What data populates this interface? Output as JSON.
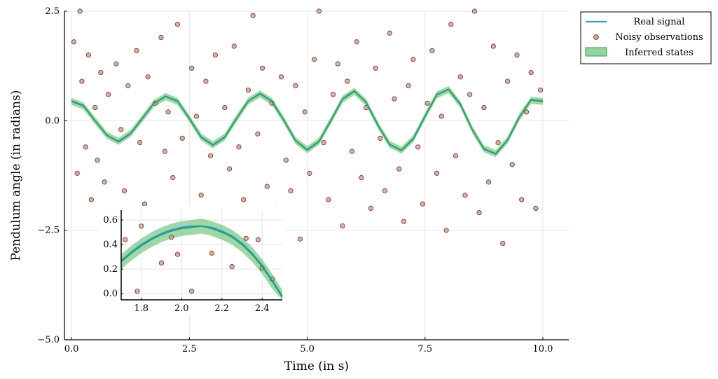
{
  "chart_data": [
    {
      "type": "scatter",
      "title": "",
      "xlabel": "Time (in s)",
      "ylabel": "Pendulum angle (in radians)",
      "xlim": [
        -0.15,
        10.55
      ],
      "ylim": [
        -5.0,
        2.5
      ],
      "xticks": [
        0.0,
        2.5,
        5.0,
        7.5,
        10.0
      ],
      "xtick_labels": [
        "0.0",
        "2.5",
        "5.0",
        "7.5",
        "10.0"
      ],
      "yticks": [
        -5.0,
        -2.5,
        0.0,
        2.5
      ],
      "ytick_labels": [
        "−5.0",
        "−2.5",
        "0.0",
        "2.5"
      ],
      "grid": true,
      "legend_position": "outside-top-right",
      "legend": [
        "Real signal",
        "Noisy observations",
        "Inferred states"
      ],
      "colors": {
        "real_signal": "#1f9ee8",
        "observations_fill": "#d9a08a",
        "observations_edge": "#5a3a2e",
        "inferred_line": "#2e9e48",
        "inferred_band": "#4cb85c"
      },
      "series": [
        {
          "name": "Real signal",
          "kind": "line",
          "x": [
            0.0,
            0.25,
            0.5,
            0.75,
            1.0,
            1.25,
            1.5,
            1.75,
            2.0,
            2.25,
            2.5,
            2.75,
            3.0,
            3.25,
            3.5,
            3.75,
            4.0,
            4.25,
            4.5,
            4.75,
            5.0,
            5.25,
            5.5,
            5.75,
            6.0,
            6.25,
            6.5,
            6.75,
            7.0,
            7.25,
            7.5,
            7.75,
            8.0,
            8.25,
            8.5,
            8.75,
            9.0,
            9.25,
            9.5,
            9.75,
            10.0
          ],
          "y": [
            0.45,
            0.35,
            0.0,
            -0.33,
            -0.48,
            -0.3,
            0.05,
            0.4,
            0.56,
            0.45,
            0.05,
            -0.38,
            -0.56,
            -0.38,
            0.05,
            0.45,
            0.62,
            0.45,
            0.02,
            -0.45,
            -0.67,
            -0.48,
            0.0,
            0.5,
            0.68,
            0.42,
            -0.1,
            -0.55,
            -0.68,
            -0.42,
            0.1,
            0.6,
            0.72,
            0.38,
            -0.2,
            -0.65,
            -0.76,
            -0.45,
            0.08,
            0.48,
            0.45
          ]
        },
        {
          "name": "Inferred states",
          "kind": "band",
          "x": [
            0.0,
            0.25,
            0.5,
            0.75,
            1.0,
            1.25,
            1.5,
            1.75,
            2.0,
            2.25,
            2.5,
            2.75,
            3.0,
            3.25,
            3.5,
            3.75,
            4.0,
            4.25,
            4.5,
            4.75,
            5.0,
            5.25,
            5.5,
            5.75,
            6.0,
            6.25,
            6.5,
            6.75,
            7.0,
            7.25,
            7.5,
            7.75,
            8.0,
            8.25,
            8.5,
            8.75,
            9.0,
            9.25,
            9.5,
            9.75,
            10.0
          ],
          "y": [
            0.44,
            0.34,
            0.0,
            -0.33,
            -0.47,
            -0.29,
            0.05,
            0.4,
            0.55,
            0.44,
            0.05,
            -0.37,
            -0.55,
            -0.37,
            0.05,
            0.45,
            0.61,
            0.44,
            0.02,
            -0.45,
            -0.66,
            -0.47,
            0.0,
            0.49,
            0.67,
            0.42,
            -0.1,
            -0.54,
            -0.67,
            -0.41,
            0.1,
            0.59,
            0.71,
            0.37,
            -0.2,
            -0.64,
            -0.75,
            -0.44,
            0.08,
            0.47,
            0.44
          ],
          "band_half_width": 0.08
        },
        {
          "name": "Noisy observations",
          "kind": "scatter",
          "x": [
            0.05,
            0.12,
            0.18,
            0.22,
            0.3,
            0.36,
            0.42,
            0.5,
            0.55,
            0.62,
            0.7,
            0.78,
            0.85,
            0.95,
            1.05,
            1.12,
            1.2,
            1.3,
            1.38,
            1.45,
            1.55,
            1.62,
            1.7,
            1.78,
            1.9,
            1.98,
            2.05,
            2.15,
            2.25,
            2.35,
            2.45,
            2.55,
            2.65,
            2.75,
            2.85,
            2.95,
            3.05,
            3.15,
            3.25,
            3.35,
            3.45,
            3.55,
            3.65,
            3.75,
            3.85,
            3.95,
            4.05,
            4.15,
            4.25,
            4.35,
            4.45,
            4.55,
            4.65,
            4.75,
            4.85,
            4.95,
            5.05,
            5.15,
            5.25,
            5.35,
            5.45,
            5.55,
            5.65,
            5.75,
            5.85,
            5.95,
            6.05,
            6.15,
            6.25,
            6.35,
            6.45,
            6.55,
            6.65,
            6.75,
            6.85,
            6.95,
            7.05,
            7.15,
            7.25,
            7.35,
            7.45,
            7.55,
            7.65,
            7.75,
            7.85,
            7.95,
            8.05,
            8.15,
            8.25,
            8.35,
            8.45,
            8.55,
            8.65,
            8.75,
            8.85,
            8.95,
            9.05,
            9.15,
            9.25,
            9.35,
            9.45,
            9.55,
            9.65,
            9.75,
            9.85,
            9.95
          ],
          "y": [
            1.8,
            -1.2,
            2.5,
            0.9,
            -0.6,
            1.5,
            -1.8,
            0.3,
            -0.9,
            1.1,
            -1.4,
            0.6,
            -2.3,
            1.3,
            -0.2,
            -1.6,
            0.8,
            -2.1,
            1.6,
            -0.5,
            -1.9,
            1.0,
            -2.6,
            0.4,
            1.9,
            -0.7,
            0.2,
            -1.3,
            2.2,
            -0.4,
            -2.2,
            1.2,
            0.1,
            -1.7,
            0.9,
            -0.8,
            1.5,
            -2.1,
            0.3,
            -1.1,
            1.7,
            -0.6,
            -1.8,
            0.7,
            2.4,
            -0.3,
            1.2,
            -1.5,
            0.4,
            -2.0,
            1.0,
            -0.9,
            -1.6,
            0.8,
            -2.7,
            0.2,
            -1.2,
            1.4,
            2.5,
            -0.5,
            -1.8,
            0.6,
            1.3,
            -2.4,
            0.9,
            -0.7,
            1.8,
            -1.3,
            0.3,
            -2.0,
            1.2,
            -0.4,
            -1.6,
            2.0,
            0.5,
            -1.1,
            -2.3,
            0.8,
            1.4,
            -0.6,
            -1.9,
            0.4,
            1.6,
            -1.2,
            0.1,
            -2.5,
            2.2,
            -0.8,
            1.0,
            -1.7,
            0.6,
            2.5,
            -2.1,
            0.3,
            -1.4,
            1.7,
            -0.5,
            -2.8,
            0.9,
            -1.0,
            1.5,
            -1.8,
            0.2,
            1.1,
            -2.0,
            0.7
          ]
        }
      ]
    },
    {
      "type": "line",
      "title": "",
      "xlim": [
        1.7,
        2.5
      ],
      "ylim": [
        -0.05,
        0.68
      ],
      "xticks": [
        1.8,
        2.0,
        2.2,
        2.4
      ],
      "xtick_labels": [
        "1.8",
        "2.0",
        "2.2",
        "2.4"
      ],
      "yticks": [
        0.0,
        0.2,
        0.4,
        0.6
      ],
      "ytick_labels": [
        "0.0",
        "0.2",
        "0.4",
        "0.6"
      ],
      "grid": true,
      "series": [
        {
          "name": "Real signal",
          "kind": "line",
          "x": [
            1.7,
            1.75,
            1.8,
            1.85,
            1.9,
            1.95,
            2.0,
            2.05,
            2.1,
            2.15,
            2.2,
            2.25,
            2.3,
            2.35,
            2.4,
            2.45,
            2.5
          ],
          "y": [
            0.27,
            0.34,
            0.4,
            0.45,
            0.49,
            0.52,
            0.54,
            0.55,
            0.55,
            0.54,
            0.51,
            0.47,
            0.41,
            0.33,
            0.23,
            0.11,
            -0.02
          ]
        },
        {
          "name": "Inferred states",
          "kind": "band",
          "x": [
            1.7,
            1.75,
            1.8,
            1.85,
            1.9,
            1.95,
            2.0,
            2.05,
            2.1,
            2.15,
            2.2,
            2.25,
            2.3,
            2.35,
            2.4,
            2.45,
            2.5
          ],
          "y": [
            0.26,
            0.33,
            0.39,
            0.44,
            0.48,
            0.51,
            0.53,
            0.54,
            0.55,
            0.53,
            0.5,
            0.46,
            0.4,
            0.32,
            0.22,
            0.1,
            -0.03
          ],
          "band_half_width": 0.06
        },
        {
          "name": "Noisy observations",
          "kind": "scatter",
          "x": [
            1.72,
            1.8,
            1.78,
            1.9,
            1.95,
            1.98,
            2.05,
            2.15,
            2.25,
            2.32,
            2.38,
            2.4,
            2.45
          ],
          "y": [
            0.44,
            0.55,
            0.02,
            0.25,
            0.46,
            0.32,
            0.02,
            0.33,
            0.22,
            0.45,
            0.44,
            0.21,
            0.12
          ]
        }
      ]
    }
  ]
}
